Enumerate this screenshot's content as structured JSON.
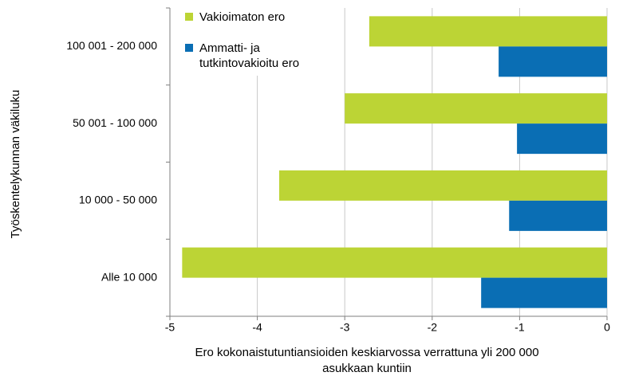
{
  "chart_data": {
    "type": "hbar",
    "ylabel": "Työskentelykunnan  väkiluku",
    "xlabel": [
      "Ero kokonaistutuntiansioiden  keskiarvossa verrattuna  yli 200 000",
      "asukkaan kuntiin"
    ],
    "categories": [
      "100 001 - 200 000",
      "50 001 - 100 000",
      "10 000 - 50 000",
      "Alle 10 000"
    ],
    "series": [
      {
        "name": "Vakioimaton ero",
        "color": "#bcd435",
        "values": [
          -2.72,
          -3.0,
          -3.75,
          -4.86
        ]
      },
      {
        "name": "Ammatti- ja tutkintovakioitu ero",
        "color": "#0a6eb4",
        "values": [
          -1.24,
          -1.03,
          -1.12,
          -1.44
        ]
      }
    ],
    "xlim": [
      -5,
      0
    ],
    "xticks": [
      -5,
      -4,
      -3,
      -2,
      -1,
      0
    ],
    "grid": true,
    "legend": "top-left"
  }
}
